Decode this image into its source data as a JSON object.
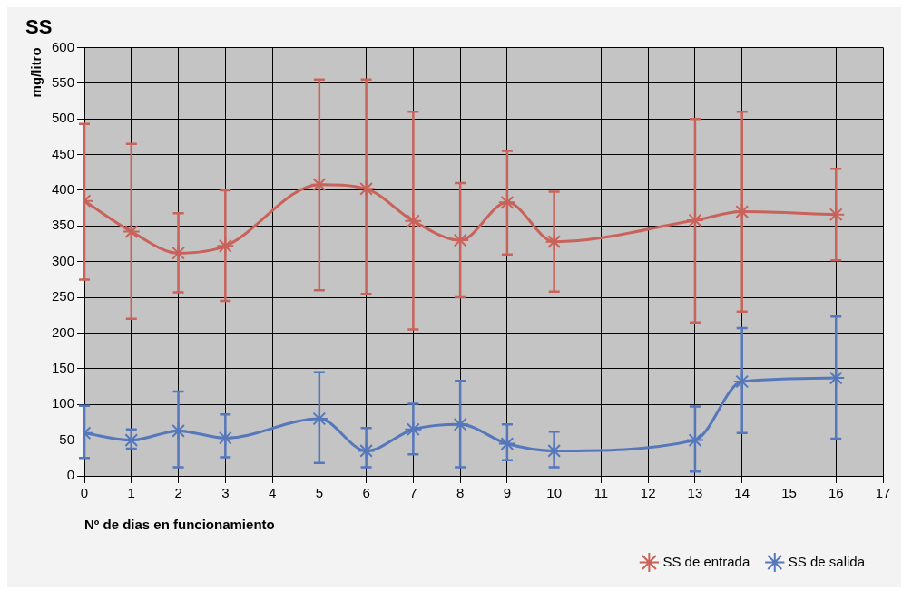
{
  "chart_data": {
    "type": "line",
    "title": "SS",
    "xlabel": "Nº de dias en funcionamiento",
    "ylabel": "mg/litro",
    "x": [
      0,
      1,
      2,
      3,
      5,
      6,
      7,
      8,
      9,
      10,
      13,
      14,
      16
    ],
    "series": [
      {
        "name": "SS de entrada",
        "color": "#c9625a",
        "values": [
          385,
          342,
          312,
          322,
          408,
          402,
          357,
          330,
          383,
          328,
          358,
          370,
          366
        ],
        "errors": [
          [
            275,
            493
          ],
          [
            220,
            465
          ],
          [
            257,
            368
          ],
          [
            245,
            400
          ],
          [
            260,
            555
          ],
          [
            255,
            555
          ],
          [
            205,
            510
          ],
          [
            250,
            410
          ],
          [
            310,
            455
          ],
          [
            258,
            398
          ],
          [
            215,
            500
          ],
          [
            230,
            510
          ],
          [
            302,
            430
          ]
        ]
      },
      {
        "name": "SS de salida",
        "color": "#5577bb",
        "values": [
          60,
          50,
          63,
          53,
          80,
          35,
          65,
          72,
          45,
          35,
          50,
          132,
          137
        ],
        "errors": [
          [
            25,
            98
          ],
          [
            38,
            65
          ],
          [
            12,
            118
          ],
          [
            26,
            86
          ],
          [
            18,
            145
          ],
          [
            12,
            67
          ],
          [
            30,
            101
          ],
          [
            12,
            133
          ],
          [
            22,
            72
          ],
          [
            12,
            62
          ],
          [
            6,
            97
          ],
          [
            60,
            207
          ],
          [
            52,
            223
          ]
        ]
      }
    ],
    "xlim": [
      0,
      17
    ],
    "xticks": [
      0,
      1,
      2,
      3,
      4,
      5,
      6,
      7,
      8,
      9,
      10,
      11,
      12,
      13,
      14,
      15,
      16,
      17
    ],
    "ylim": [
      0,
      600
    ],
    "yticks": [
      0,
      50,
      100,
      150,
      200,
      250,
      300,
      350,
      400,
      450,
      500,
      550,
      600
    ],
    "grid": true,
    "legend": "bottom right",
    "marker": "cross",
    "line_style": "solid"
  }
}
